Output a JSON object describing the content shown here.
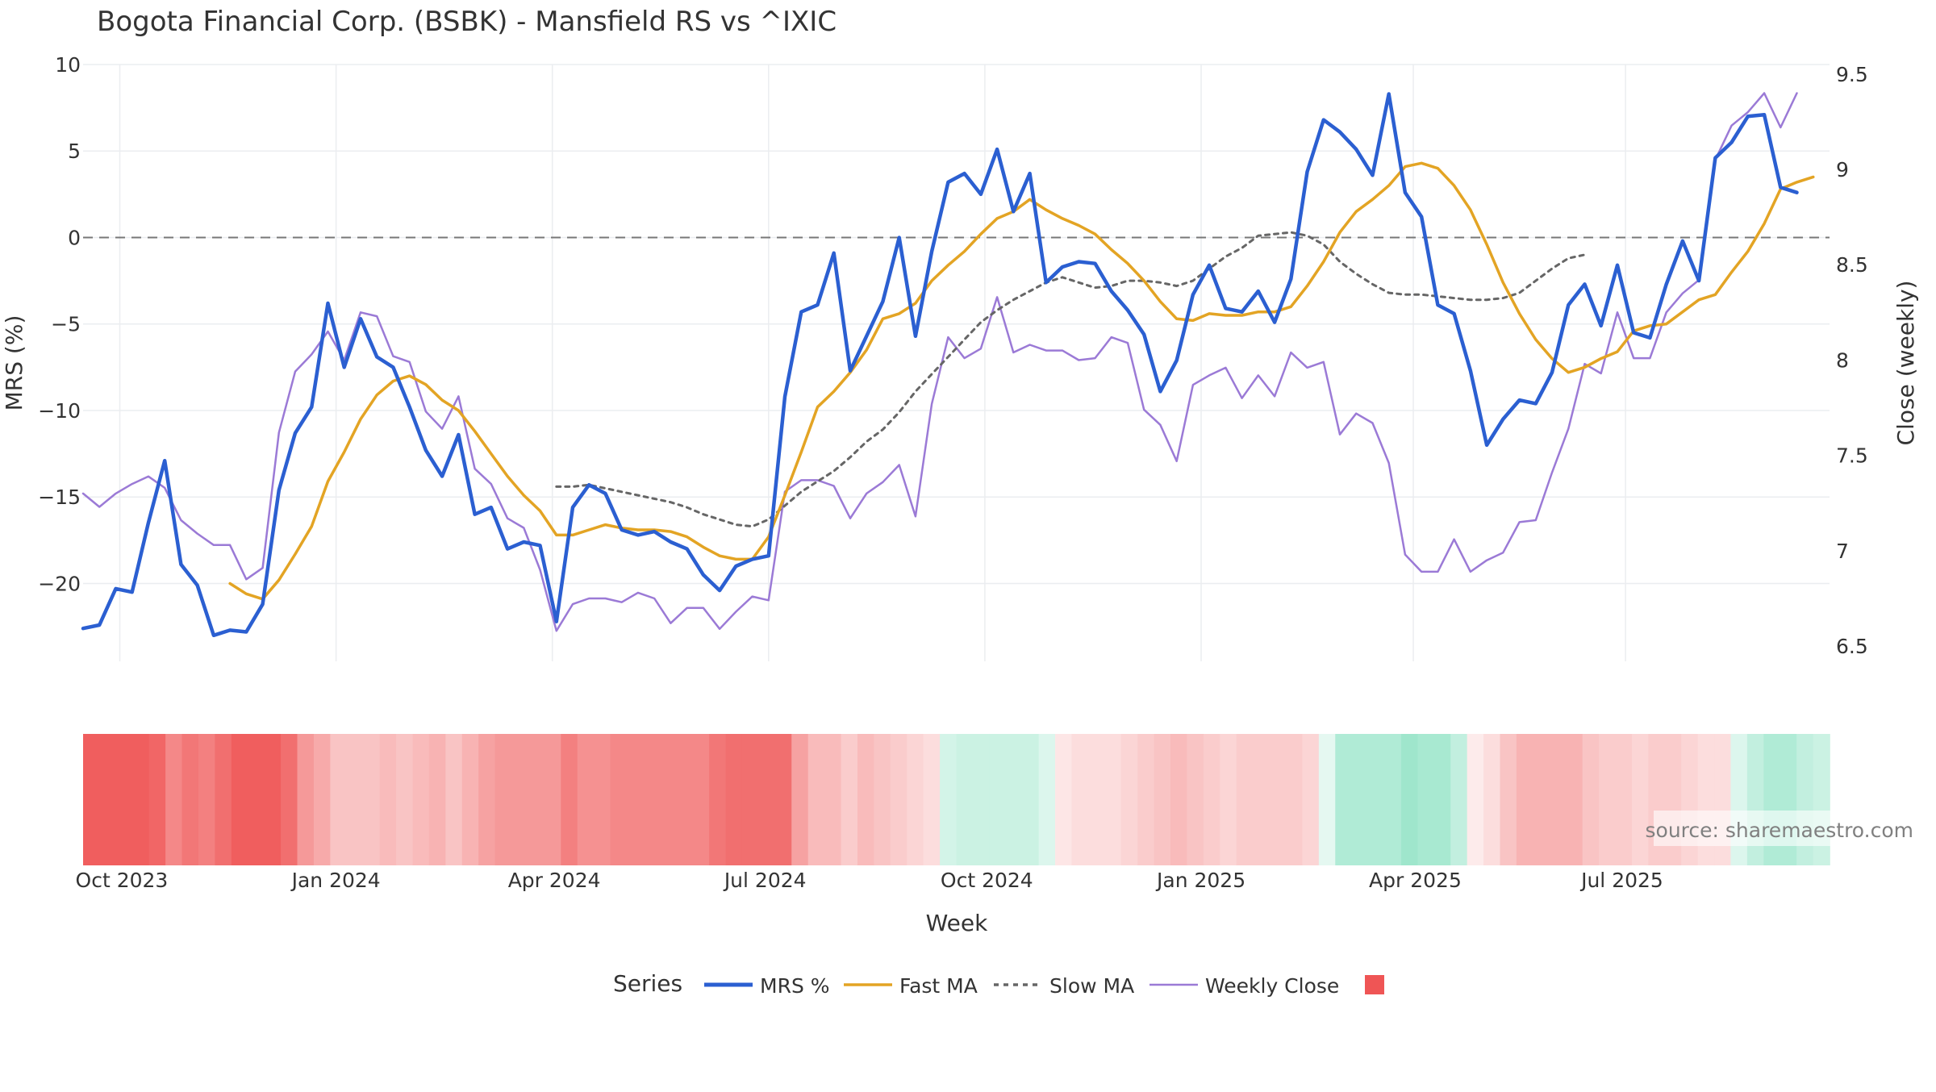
{
  "chart_data": {
    "type": "line",
    "title": "Bogota Financial Corp. (BSBK) - Mansfield RS vs ^IXIC",
    "xlabel": "Week",
    "ylabel_left": "MRS (%)",
    "ylabel_right": "Close (weekly)",
    "ylim_left": [
      -24.5,
      10
    ],
    "ylim_right": [
      6.42,
      9.55
    ],
    "yticks_left": [
      10,
      5,
      0,
      -5,
      -10,
      -15,
      -20
    ],
    "yticks_right": [
      9.5,
      9,
      8.5,
      8,
      7.5,
      7,
      6.5
    ],
    "x_week_range": [
      0,
      107
    ],
    "xticks": [
      {
        "label": "Oct 2023",
        "week": 2.25
      },
      {
        "label": "Jan 2024",
        "week": 15.5
      },
      {
        "label": "Apr 2024",
        "week": 28.75
      },
      {
        "label": "Jul 2024",
        "week": 42
      },
      {
        "label": "Oct 2024",
        "week": 55.25
      },
      {
        "label": "Jan 2025",
        "week": 68.5
      },
      {
        "label": "Apr 2025",
        "week": 81.5
      },
      {
        "label": "Jul 2025",
        "week": 94.5
      }
    ],
    "zero_line": 0,
    "legend": {
      "title": "Series",
      "position": "bottom-center",
      "entries": [
        "MRS %",
        "Fast MA",
        "Slow MA",
        "Weekly Close",
        ""
      ]
    },
    "watermark": "source: sharemaestro.com",
    "colors": {
      "mrs": "#2b5fd1",
      "fast": "#e3a424",
      "slow": "#666666",
      "close": "#9b7ad6",
      "strip_red": "#ef5555",
      "strip_green": "#50d2a3"
    },
    "series": [
      {
        "name": "MRS %",
        "start_week": 0,
        "values": [
          -22.6,
          -22.4,
          -20.3,
          -20.5,
          -16.5,
          -12.9,
          -18.9,
          -20.1,
          -23,
          -22.7,
          -22.8,
          -21.2,
          -14.6,
          -11.3,
          -9.8,
          -3.8,
          -7.5,
          -4.7,
          -6.9,
          -7.5,
          -9.8,
          -12.3,
          -13.8,
          -11.4,
          -16,
          -15.6,
          -18,
          -17.6,
          -17.8,
          -22.2,
          -15.6,
          -14.3,
          -14.8,
          -16.9,
          -17.2,
          -17,
          -17.6,
          -18,
          -19.5,
          -20.4,
          -19,
          -18.6,
          -18.4,
          -9.2,
          -4.3,
          -3.9,
          -0.9,
          -7.7,
          -5.7,
          -3.7,
          0,
          -5.7,
          -0.8,
          3.2,
          3.7,
          2.5,
          5.1,
          1.5,
          3.7,
          -2.6,
          -1.7,
          -1.4,
          -1.5,
          -3.1,
          -4.2,
          -5.6,
          -8.9,
          -7.1,
          -3.3,
          -1.6,
          -4.1,
          -4.3,
          -3.1,
          -4.9,
          -2.4,
          3.8,
          6.8,
          6.1,
          5.1,
          3.6,
          8.3,
          2.6,
          1.2,
          -3.9,
          -4.4,
          -7.7,
          -12,
          -10.5,
          -9.4,
          -9.6,
          -7.8,
          -3.9,
          -2.7,
          -5.1,
          -1.6,
          -5.5,
          -5.8,
          -2.7,
          -0.2,
          -2.5,
          4.6,
          5.5,
          7,
          7.1,
          2.9,
          2.6
        ]
      },
      {
        "name": "Fast MA",
        "start_week": 9,
        "values": [
          -20,
          -20.6,
          -20.9,
          -19.8,
          -18.3,
          -16.7,
          -14.1,
          -12.4,
          -10.5,
          -9.1,
          -8.3,
          -8,
          -8.5,
          -9.4,
          -10,
          -11.2,
          -12.5,
          -13.8,
          -14.9,
          -15.8,
          -17.2,
          -17.2,
          -16.9,
          -16.6,
          -16.8,
          -16.9,
          -16.9,
          -17,
          -17.3,
          -17.9,
          -18.4,
          -18.6,
          -18.6,
          -17.3,
          -14.9,
          -12.4,
          -9.8,
          -8.9,
          -7.8,
          -6.5,
          -4.7,
          -4.4,
          -3.8,
          -2.5,
          -1.6,
          -0.8,
          0.2,
          1.1,
          1.5,
          2.2,
          1.6,
          1.1,
          0.7,
          0.2,
          -0.7,
          -1.5,
          -2.5,
          -3.7,
          -4.7,
          -4.8,
          -4.4,
          -4.5,
          -4.5,
          -4.3,
          -4.3,
          -4.0,
          -2.8,
          -1.4,
          0.3,
          1.5,
          2.2,
          3.0,
          4.1,
          4.3,
          4.0,
          3.0,
          1.6,
          -0.4,
          -2.6,
          -4.4,
          -5.9,
          -7.0,
          -7.8,
          -7.5,
          -7.0,
          -6.6,
          -5.4,
          -5.1,
          -5.0,
          -4.3,
          -3.6,
          -3.3,
          -2.0,
          -0.8,
          0.8,
          2.8,
          3.2,
          3.5
        ]
      },
      {
        "name": "Slow MA",
        "start_week": 29,
        "values": [
          -14.4,
          -14.4,
          -14.3,
          -14.5,
          -14.7,
          -14.9,
          -15.1,
          -15.3,
          -15.6,
          -16,
          -16.3,
          -16.6,
          -16.7,
          -16.3,
          -15.5,
          -14.7,
          -14.1,
          -13.5,
          -12.7,
          -11.8,
          -11.1,
          -10.1,
          -8.9,
          -7.9,
          -6.9,
          -5.9,
          -4.9,
          -4.2,
          -3.6,
          -3.1,
          -2.6,
          -2.3,
          -2.6,
          -2.9,
          -2.8,
          -2.5,
          -2.5,
          -2.6,
          -2.8,
          -2.5,
          -1.8,
          -1.1,
          -0.6,
          0.1,
          0.2,
          0.3,
          0.1,
          -0.4,
          -1.4,
          -2.1,
          -2.7,
          -3.2,
          -3.3,
          -3.3,
          -3.4,
          -3.5,
          -3.6,
          -3.6,
          -3.5,
          -3.2,
          -2.5,
          -1.8,
          -1.2,
          -1
        ]
      },
      {
        "name": "Weekly Close",
        "axis": "right",
        "start_week": 0,
        "values": [
          7.3,
          7.23,
          7.3,
          7.35,
          7.39,
          7.33,
          7.16,
          7.09,
          7.03,
          7.03,
          6.85,
          6.91,
          7.62,
          7.94,
          8.03,
          8.15,
          8.0,
          8.25,
          8.23,
          8.02,
          7.99,
          7.73,
          7.64,
          7.81,
          7.43,
          7.35,
          7.17,
          7.12,
          6.9,
          6.58,
          6.72,
          6.75,
          6.75,
          6.73,
          6.78,
          6.75,
          6.62,
          6.7,
          6.7,
          6.59,
          6.68,
          6.76,
          6.74,
          7.31,
          7.37,
          7.37,
          7.34,
          7.17,
          7.3,
          7.36,
          7.45,
          7.18,
          7.77,
          8.12,
          8.01,
          8.06,
          8.33,
          8.04,
          8.08,
          8.05,
          8.05,
          8.0,
          8.01,
          8.12,
          8.09,
          7.74,
          7.66,
          7.47,
          7.87,
          7.92,
          7.96,
          7.8,
          7.92,
          7.81,
          8.04,
          7.96,
          7.99,
          7.61,
          7.72,
          7.67,
          7.46,
          6.98,
          6.89,
          6.89,
          7.06,
          6.89,
          6.95,
          6.99,
          7.15,
          7.16,
          7.41,
          7.64,
          7.98,
          7.93,
          8.25,
          8.01,
          8.01,
          8.25,
          8.35,
          8.42,
          9.05,
          9.23,
          9.3,
          9.4,
          9.22,
          9.4
        ]
      }
    ],
    "strip_intensity": [
      0.95,
      0.95,
      0.95,
      0.95,
      0.9,
      0.7,
      0.8,
      0.75,
      0.85,
      0.95,
      0.95,
      0.95,
      0.85,
      0.6,
      0.5,
      0.35,
      0.35,
      0.35,
      0.4,
      0.35,
      0.4,
      0.45,
      0.35,
      0.45,
      0.55,
      0.6,
      0.6,
      0.6,
      0.6,
      0.75,
      0.65,
      0.65,
      0.7,
      0.7,
      0.7,
      0.7,
      0.7,
      0.7,
      0.8,
      0.85,
      0.85,
      0.85,
      0.85,
      0.55,
      0.4,
      0.4,
      0.3,
      0.4,
      0.35,
      0.3,
      0.25,
      0.2,
      -0.25,
      -0.3,
      -0.3,
      -0.3,
      -0.3,
      -0.3,
      -0.2,
      0.15,
      0.2,
      0.2,
      0.2,
      0.25,
      0.3,
      0.35,
      0.4,
      0.35,
      0.3,
      0.25,
      0.3,
      0.3,
      0.3,
      0.3,
      0.25,
      -0.15,
      -0.45,
      -0.45,
      -0.45,
      -0.45,
      -0.55,
      -0.5,
      -0.5,
      -0.35,
      0.12,
      0.2,
      0.35,
      0.45,
      0.45,
      0.45,
      0.45,
      0.35,
      0.3,
      0.3,
      0.25,
      0.3,
      0.3,
      0.25,
      0.2,
      0.2,
      -0.2,
      -0.35,
      -0.45,
      -0.45,
      -0.35,
      -0.3
    ]
  }
}
